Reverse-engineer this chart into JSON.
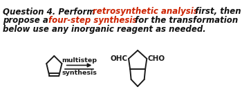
{
  "bg_color": "#ffffff",
  "line1_p1": "Question 4. Perform ",
  "line1_p2": "retrosynthetic analysis",
  "line1_p3": " first, then",
  "line2_p1": "propose a ",
  "line2_p2": "four-step synthesis",
  "line2_p3": " for the transformation",
  "line3": "below use any inorganic reagent as needed.",
  "color_black": "#111111",
  "color_red": "#cc2200",
  "arrow_label_top": "multistep",
  "arrow_label_bottom": "synthesis",
  "font_size_text": 8.5,
  "font_size_arrow": 6.8,
  "font_size_mol": 7.5
}
